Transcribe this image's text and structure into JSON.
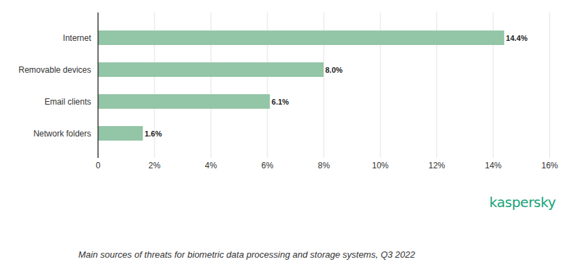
{
  "chart_data": {
    "type": "bar",
    "orientation": "horizontal",
    "caption": "Main sources of threats for biometric data processing and storage systems, Q3 2022",
    "source": "kaspersky",
    "categories": [
      "Internet",
      "Removable devices",
      "Email clients",
      "Network folders"
    ],
    "values": [
      14.4,
      8.0,
      6.1,
      1.6
    ],
    "value_labels": [
      "14.4%",
      "8.0%",
      "6.1%",
      "1.6%"
    ],
    "data_labels": true,
    "color": "#93c5a7",
    "xlim": [
      0,
      16
    ],
    "xticks": [
      0,
      {
        "value": 2,
        "label": "2%"
      },
      {
        "value": 4,
        "label": "4%"
      },
      {
        "value": 6,
        "label": "6%"
      },
      {
        "value": 8,
        "label": "8%"
      },
      {
        "value": 10,
        "label": "10%"
      },
      {
        "value": 12,
        "label": "12%"
      },
      {
        "value": 14,
        "label": "14%"
      },
      {
        "value": 16,
        "label": "16%"
      }
    ],
    "grid": true
  }
}
